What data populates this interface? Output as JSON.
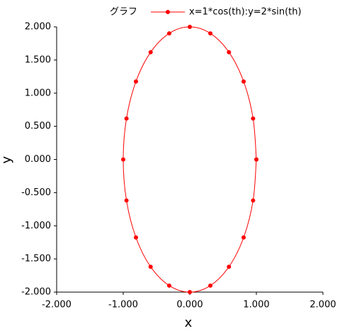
{
  "chart_data": {
    "type": "line",
    "legend_title": "グラフ",
    "x_label": "x",
    "y_label": "y",
    "series": [
      {
        "name": "x=1*cos(th):y=2*sin(th)",
        "color": "#ff0000",
        "x": [
          1,
          0.951,
          0.809,
          0.588,
          0.309,
          0,
          -0.309,
          -0.588,
          -0.809,
          -0.951,
          -1,
          -0.951,
          -0.809,
          -0.588,
          -0.309,
          0,
          0.309,
          0.588,
          0.809,
          0.951,
          1
        ],
        "values": [
          0,
          0.618,
          1.176,
          1.618,
          1.902,
          2,
          1.902,
          1.618,
          1.176,
          0.618,
          0,
          -0.618,
          -1.176,
          -1.618,
          -1.902,
          -2,
          -1.902,
          -1.618,
          -1.176,
          -0.618,
          0
        ]
      }
    ],
    "xlim": [
      -2,
      2
    ],
    "ylim": [
      -2,
      2
    ],
    "xticks": [
      {
        "value": -2,
        "label": "-2.000"
      },
      {
        "value": -1,
        "label": "-1.000"
      },
      {
        "value": 0,
        "label": "0.000"
      },
      {
        "value": 1,
        "label": "1.000"
      },
      {
        "value": 2,
        "label": "2.000"
      }
    ],
    "yticks": [
      {
        "value": -2,
        "label": "-2.000"
      },
      {
        "value": -1.5,
        "label": "-1.500"
      },
      {
        "value": -1,
        "label": "-1.000"
      },
      {
        "value": -0.5,
        "label": "-0.500"
      },
      {
        "value": 0,
        "label": "0.000"
      },
      {
        "value": 0.5,
        "label": "0.500"
      },
      {
        "value": 1,
        "label": "1.000"
      },
      {
        "value": 1.5,
        "label": "1.500"
      },
      {
        "value": 2,
        "label": "2.000"
      }
    ],
    "legend_position": "top",
    "markers": true,
    "smooth": true
  }
}
